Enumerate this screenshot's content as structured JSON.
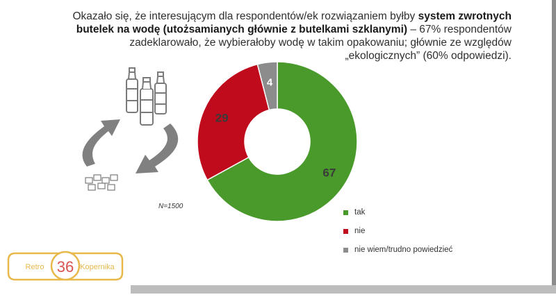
{
  "headline": {
    "part1": "Okazało się, że interesującym dla respondentów/ek rozwiązaniem byłby ",
    "bold1": "system zwrotnych butelek na wodę (utożsamianych głównie z butelkami szklanymi)",
    "part2": " – 67% respondentów zadeklarowało, że wybierałoby wodę w takim opakowaniu; głównie ze względów „ekologicznych” (60% odpowiedzi)."
  },
  "sample_note": "N=1500",
  "chart_data": {
    "type": "pie",
    "donut": true,
    "categories": [
      "tak",
      "nie",
      "nie wiem/trudno powiedzieć"
    ],
    "values": [
      67,
      29,
      4
    ],
    "colors": [
      "#4a9a2b",
      "#c00b1c",
      "#8c8c8c"
    ],
    "legend_position": "right-bottom"
  },
  "logo": {
    "left_text": "Retro",
    "number": "36",
    "right_text": "Kopernika",
    "number_color": "#d9534f",
    "frame_color": "#e8b84a"
  },
  "icons": {
    "bottles": "glass-bottles-icon",
    "cycle": "recycle-arrows-icon",
    "crates": "crate-icon"
  }
}
